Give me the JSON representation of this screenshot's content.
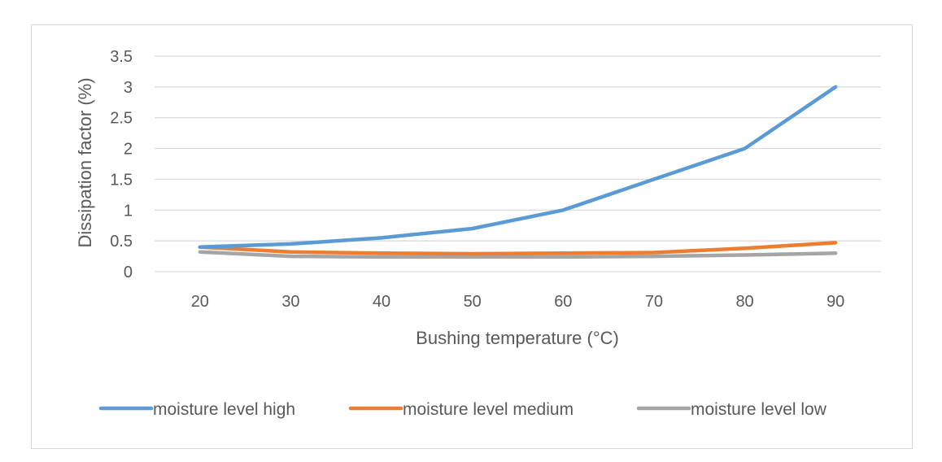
{
  "chart_data": {
    "type": "line",
    "title": "",
    "xlabel": "Bushing temperature (°C)",
    "ylabel": "Dissipation factor (%)",
    "categories": [
      "20",
      "30",
      "40",
      "50",
      "60",
      "70",
      "80",
      "90"
    ],
    "ylim": [
      0,
      3.5
    ],
    "yticks": [
      "0",
      "0.5",
      "1",
      "1.5",
      "2",
      "2.5",
      "3",
      "3.5"
    ],
    "grid": true,
    "legend_position": "bottom",
    "series": [
      {
        "name": "moisture level high",
        "color": "#5B9BD5",
        "values": [
          0.4,
          0.45,
          0.55,
          0.7,
          1.0,
          1.5,
          2.0,
          3.0
        ]
      },
      {
        "name": "moisture level medium",
        "color": "#ED7D31",
        "values": [
          0.4,
          0.32,
          0.3,
          0.29,
          0.3,
          0.31,
          0.38,
          0.47
        ]
      },
      {
        "name": "moisture level low",
        "color": "#A5A5A5",
        "values": [
          0.32,
          0.25,
          0.24,
          0.24,
          0.24,
          0.25,
          0.27,
          0.3
        ]
      }
    ]
  }
}
